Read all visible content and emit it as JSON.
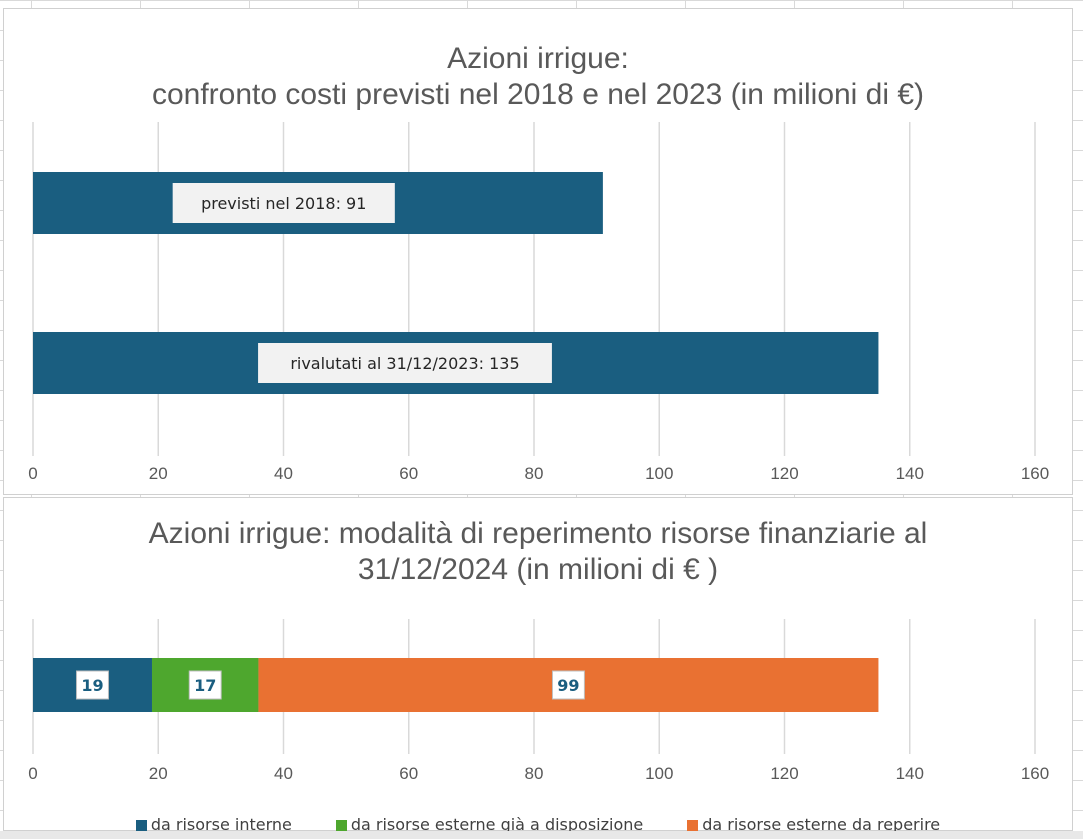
{
  "chart_data": [
    {
      "type": "bar",
      "orientation": "horizontal",
      "title": [
        "Azioni irrigue:",
        "confronto costi previsti nel 2018 e nel 2023  (in milioni di €)"
      ],
      "categories": [
        "previsti nel 2018",
        "rivalutati al 31/12/2023"
      ],
      "values": [
        91,
        135
      ],
      "data_labels": [
        "previsti nel 2018: 91",
        "rivalutati al 31/12/2023: 135"
      ],
      "bar_color": "#1a5e80",
      "xlim": [
        0,
        160
      ],
      "xticks": [
        0,
        20,
        40,
        60,
        80,
        100,
        120,
        140,
        160
      ],
      "grid": true,
      "xlabel": "",
      "ylabel": ""
    },
    {
      "type": "bar",
      "orientation": "horizontal",
      "stacked": true,
      "title": [
        "Azioni irrigue: modalità di reperimento risorse finanziarie al",
        "31/12/2024 (in milioni di € )"
      ],
      "series": [
        {
          "name": "da risorse interne",
          "values": [
            19
          ],
          "color": "#1a5e80"
        },
        {
          "name": "da risorse esterne già a disposizione",
          "values": [
            17
          ],
          "color": "#4ea72e"
        },
        {
          "name": "da risorse esterne da reperire",
          "values": [
            99
          ],
          "color": "#e97132"
        }
      ],
      "xlim": [
        0,
        160
      ],
      "xticks": [
        0,
        20,
        40,
        60,
        80,
        100,
        120,
        140,
        160
      ],
      "grid": true,
      "legend_position": "bottom",
      "xlabel": "",
      "ylabel": ""
    }
  ]
}
